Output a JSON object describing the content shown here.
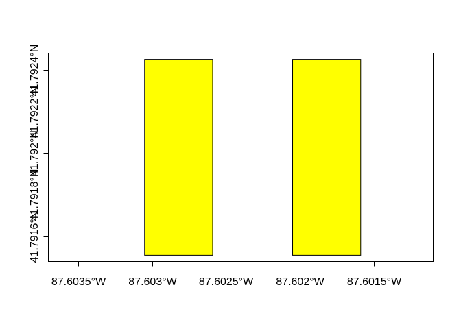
{
  "chart_data": {
    "type": "map",
    "title": "",
    "xlabel": "",
    "ylabel": "",
    "xlim": [
      -87.6037,
      -87.6011
    ],
    "ylim": [
      41.79148,
      41.79248
    ],
    "x_ticks": [
      {
        "value": -87.6035,
        "label": "87.6035°W"
      },
      {
        "value": -87.603,
        "label": "87.603°W"
      },
      {
        "value": -87.6025,
        "label": "87.6025°W"
      },
      {
        "value": -87.602,
        "label": "87.602°W"
      },
      {
        "value": -87.6015,
        "label": "87.6015°W"
      }
    ],
    "y_ticks": [
      {
        "value": 41.7916,
        "label": "41.7916°N"
      },
      {
        "value": 41.7918,
        "label": "41.7918°N"
      },
      {
        "value": 41.792,
        "label": "41.792°N"
      },
      {
        "value": 41.7922,
        "label": "41.7922°N"
      },
      {
        "value": 41.7924,
        "label": "41.7924°N"
      }
    ],
    "polygons": [
      {
        "xmin": -87.60305,
        "xmax": -87.60259,
        "ymin": 41.79151,
        "ymax": 41.79245,
        "fill": "#ffff00",
        "stroke": "#000000"
      },
      {
        "xmin": -87.60205,
        "xmax": -87.60159,
        "ymin": 41.79151,
        "ymax": 41.79245,
        "fill": "#ffff00",
        "stroke": "#000000"
      }
    ],
    "grid": false,
    "legend": "none"
  }
}
